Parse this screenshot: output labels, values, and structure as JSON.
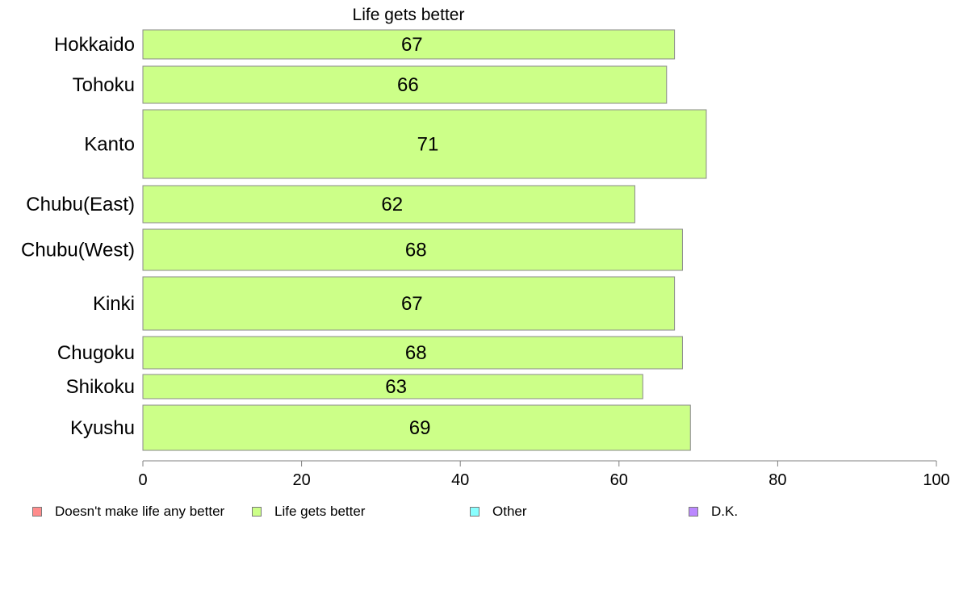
{
  "chart_data": {
    "type": "bar",
    "orientation": "horizontal",
    "title": "Life gets better",
    "categories": [
      "Hokkaido",
      "Tohoku",
      "Kanto",
      "Chubu(East)",
      "Chubu(West)",
      "Kinki",
      "Chugoku",
      "Shikoku",
      "Kyushu"
    ],
    "series": [
      {
        "name": "Life gets better",
        "values": [
          67,
          66,
          71,
          62,
          68,
          67,
          68,
          63,
          69
        ],
        "color": "#ccff88"
      }
    ],
    "xlim": [
      0,
      100
    ],
    "xticks": [
      0,
      20,
      40,
      60,
      80,
      100
    ],
    "grid": false,
    "legend_position": "bottom",
    "legend": [
      {
        "label": "Doesn't make life any better",
        "color": "#ff8c8c"
      },
      {
        "label": "Life gets better",
        "color": "#ccff88"
      },
      {
        "label": "Other",
        "color": "#88ffff"
      },
      {
        "label": "D.K.",
        "color": "#bb88ff"
      }
    ]
  }
}
